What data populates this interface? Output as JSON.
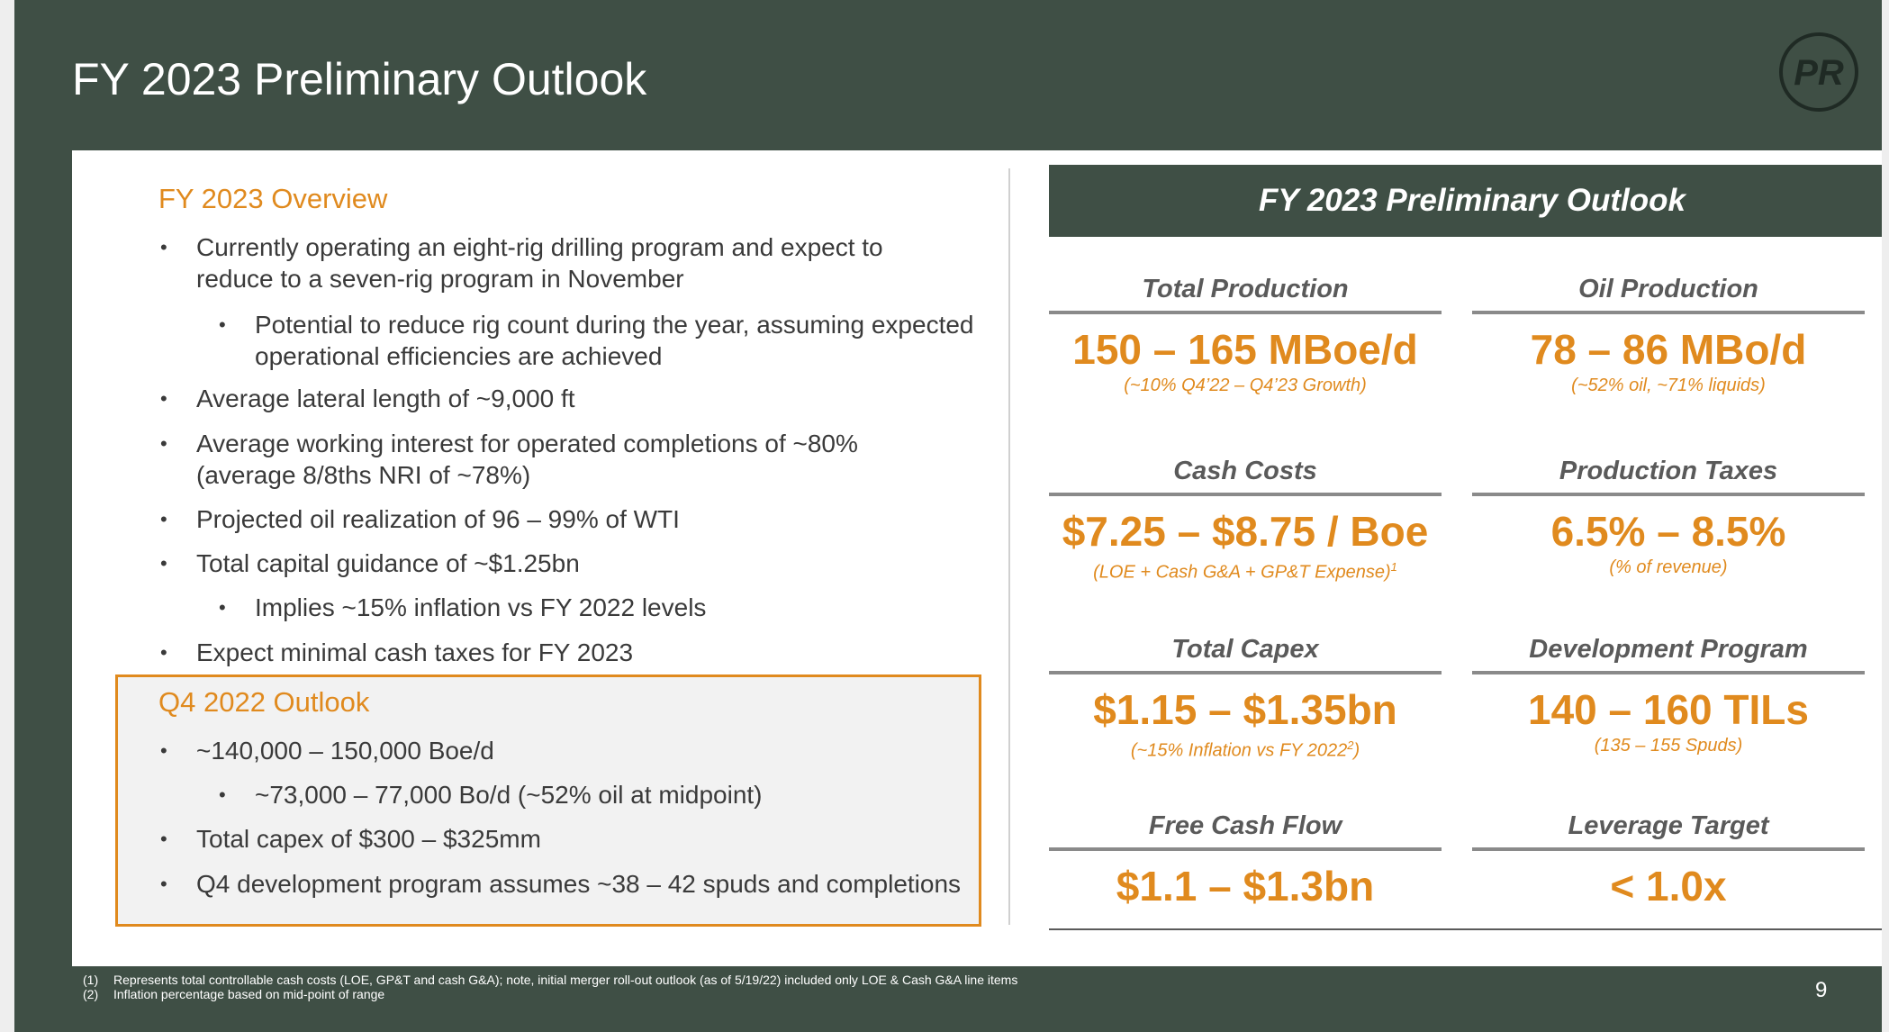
{
  "slide": {
    "title": "FY 2023 Preliminary Outlook",
    "logo_text": "PR",
    "page_number": "9"
  },
  "overview": {
    "title": "FY 2023 Overview",
    "bullets": [
      {
        "text": "Currently operating an eight-rig drilling program and expect to reduce to a seven-rig program in November",
        "level": 1
      },
      {
        "text": "Potential to reduce rig count during the year, assuming expected operational efficiencies are achieved",
        "level": 2
      },
      {
        "text": "Average lateral length of ~9,000 ft",
        "level": 1
      },
      {
        "text": "Average working interest for operated completions of ~80% (average 8/8ths NRI of ~78%)",
        "level": 1
      },
      {
        "text": "Projected oil realization of 96 – 99% of WTI",
        "level": 1
      },
      {
        "text": "Total capital guidance of ~$1.25bn",
        "level": 1
      },
      {
        "text": "Implies ~15% inflation vs FY 2022 levels",
        "level": 2
      },
      {
        "text": "Expect minimal cash taxes for FY 2023",
        "level": 1
      }
    ]
  },
  "q4_outlook": {
    "title": "Q4 2022 Outlook",
    "bullets": [
      {
        "text": "~140,000 – 150,000 Boe/d",
        "level": 1
      },
      {
        "text": "~73,000 – 77,000 Bo/d (~52% oil at midpoint)",
        "level": 2
      },
      {
        "text": "Total capex of $300 – $325mm",
        "level": 1
      },
      {
        "text": "Q4 development program assumes ~38 – 42 spuds and completions",
        "level": 1
      }
    ]
  },
  "outlook": {
    "header": "FY 2023 Preliminary Outlook",
    "metrics": [
      {
        "label": "Total Production",
        "value": "150 – 165 MBoe/d",
        "sub": "(~10% Q4’22 – Q4’23 Growth)",
        "sup": "",
        "sub_end": ""
      },
      {
        "label": "Oil Production",
        "value": "78 – 86 MBo/d",
        "sub": "(~52% oil, ~71% liquids)",
        "sup": "",
        "sub_end": ""
      },
      {
        "label": "Cash Costs",
        "value": "$7.25 – $8.75 / Boe",
        "sub": "(LOE + Cash G&A + GP&T Expense)",
        "sup": "1",
        "sub_end": ""
      },
      {
        "label": "Production Taxes",
        "value": "6.5% – 8.5%",
        "sub": "(% of revenue)",
        "sup": "",
        "sub_end": ""
      },
      {
        "label": "Total Capex",
        "value": "$1.15 – $1.35bn",
        "sub": "(~15% Inflation vs FY 2022",
        "sup": "2",
        "sub_end": ")"
      },
      {
        "label": "Development Program",
        "value": "140 – 160 TILs",
        "sub": "(135 – 155 Spuds)",
        "sup": "",
        "sub_end": ""
      },
      {
        "label": "Free Cash Flow",
        "value": "$1.1 – $1.3bn",
        "sub": "",
        "sup": "",
        "sub_end": ""
      },
      {
        "label": "Leverage Target",
        "value": "< 1.0x",
        "sub": "",
        "sup": "",
        "sub_end": ""
      }
    ]
  },
  "footnotes": [
    {
      "num": "(1)",
      "text": "Represents total controllable cash costs (LOE, GP&T and cash G&A); note, initial merger roll-out outlook (as of 5/19/22) included only LOE & Cash G&A line items"
    },
    {
      "num": "(2)",
      "text": "Inflation percentage based on mid-point of range"
    }
  ],
  "colors": {
    "header_green": "#3f4f45",
    "accent_orange": "#e08a1e",
    "label_gray": "#5a5a5a"
  }
}
